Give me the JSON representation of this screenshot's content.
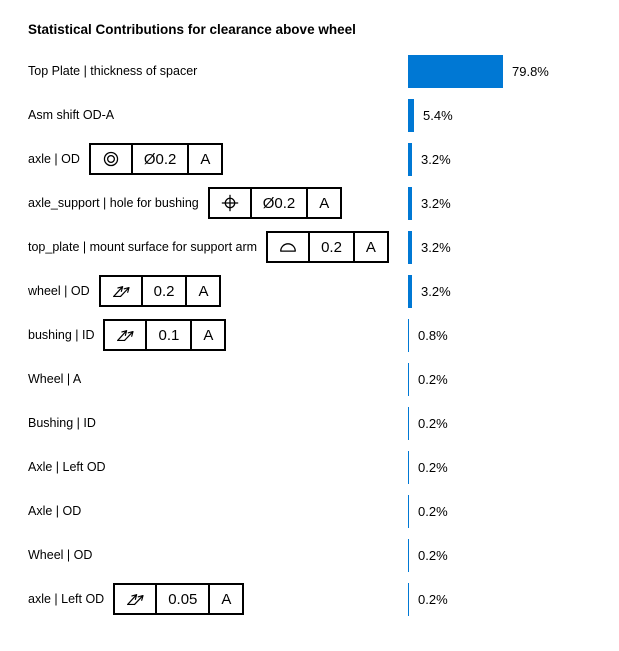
{
  "colors": {
    "bar": "#0078D4",
    "text": "#000000",
    "frame_border": "#000000",
    "background": "#FFFFFF"
  },
  "chart_data": {
    "type": "bar",
    "orientation": "horizontal",
    "title": "Statistical Contributions for clearance above wheel",
    "unit": "%",
    "xlim": [
      0,
      100
    ],
    "grid": false,
    "legend": false,
    "categories": [
      "Top Plate | thickness of spacer",
      "Asm shift OD-A",
      "axle | OD",
      "axle_support | hole for bushing",
      "top_plate | mount surface for support arm",
      "wheel | OD",
      "bushing | ID",
      "Wheel | A",
      "Bushing | ID",
      "Axle | Left OD",
      "Axle | OD",
      "Wheel | OD",
      "axle | Left OD"
    ],
    "values": [
      79.8,
      5.4,
      3.2,
      3.2,
      3.2,
      3.2,
      0.8,
      0.2,
      0.2,
      0.2,
      0.2,
      0.2,
      0.2
    ],
    "rows": [
      {
        "label": "Top Plate | thickness of spacer",
        "value": 79.8,
        "value_label": "79.8%",
        "fcf": null
      },
      {
        "label": "Asm shift OD-A",
        "value": 5.4,
        "value_label": "5.4%",
        "fcf": null
      },
      {
        "label": "axle | OD",
        "value": 3.2,
        "value_label": "3.2%",
        "fcf": {
          "symbol": "concentricity",
          "tolerance": "Ø0.2",
          "datum": "A"
        }
      },
      {
        "label": "axle_support | hole for bushing",
        "value": 3.2,
        "value_label": "3.2%",
        "fcf": {
          "symbol": "position",
          "tolerance": "Ø0.2",
          "datum": "A"
        }
      },
      {
        "label": "top_plate | mount surface for support arm",
        "value": 3.2,
        "value_label": "3.2%",
        "fcf": {
          "symbol": "profile-of-surface",
          "tolerance": "0.2",
          "datum": "A"
        }
      },
      {
        "label": "wheel | OD",
        "value": 3.2,
        "value_label": "3.2%",
        "fcf": {
          "symbol": "total-runout",
          "tolerance": "0.2",
          "datum": "A"
        }
      },
      {
        "label": "bushing | ID",
        "value": 0.8,
        "value_label": "0.8%",
        "fcf": {
          "symbol": "total-runout",
          "tolerance": "0.1",
          "datum": "A"
        }
      },
      {
        "label": "Wheel | A",
        "value": 0.2,
        "value_label": "0.2%",
        "fcf": null
      },
      {
        "label": "Bushing | ID",
        "value": 0.2,
        "value_label": "0.2%",
        "fcf": null
      },
      {
        "label": "Axle | Left OD",
        "value": 0.2,
        "value_label": "0.2%",
        "fcf": null
      },
      {
        "label": "Axle | OD",
        "value": 0.2,
        "value_label": "0.2%",
        "fcf": null
      },
      {
        "label": "Wheel | OD",
        "value": 0.2,
        "value_label": "0.2%",
        "fcf": null
      },
      {
        "label": "axle | Left OD",
        "value": 0.2,
        "value_label": "0.2%",
        "fcf": {
          "symbol": "total-runout",
          "tolerance": "0.05",
          "datum": "A"
        }
      }
    ]
  }
}
